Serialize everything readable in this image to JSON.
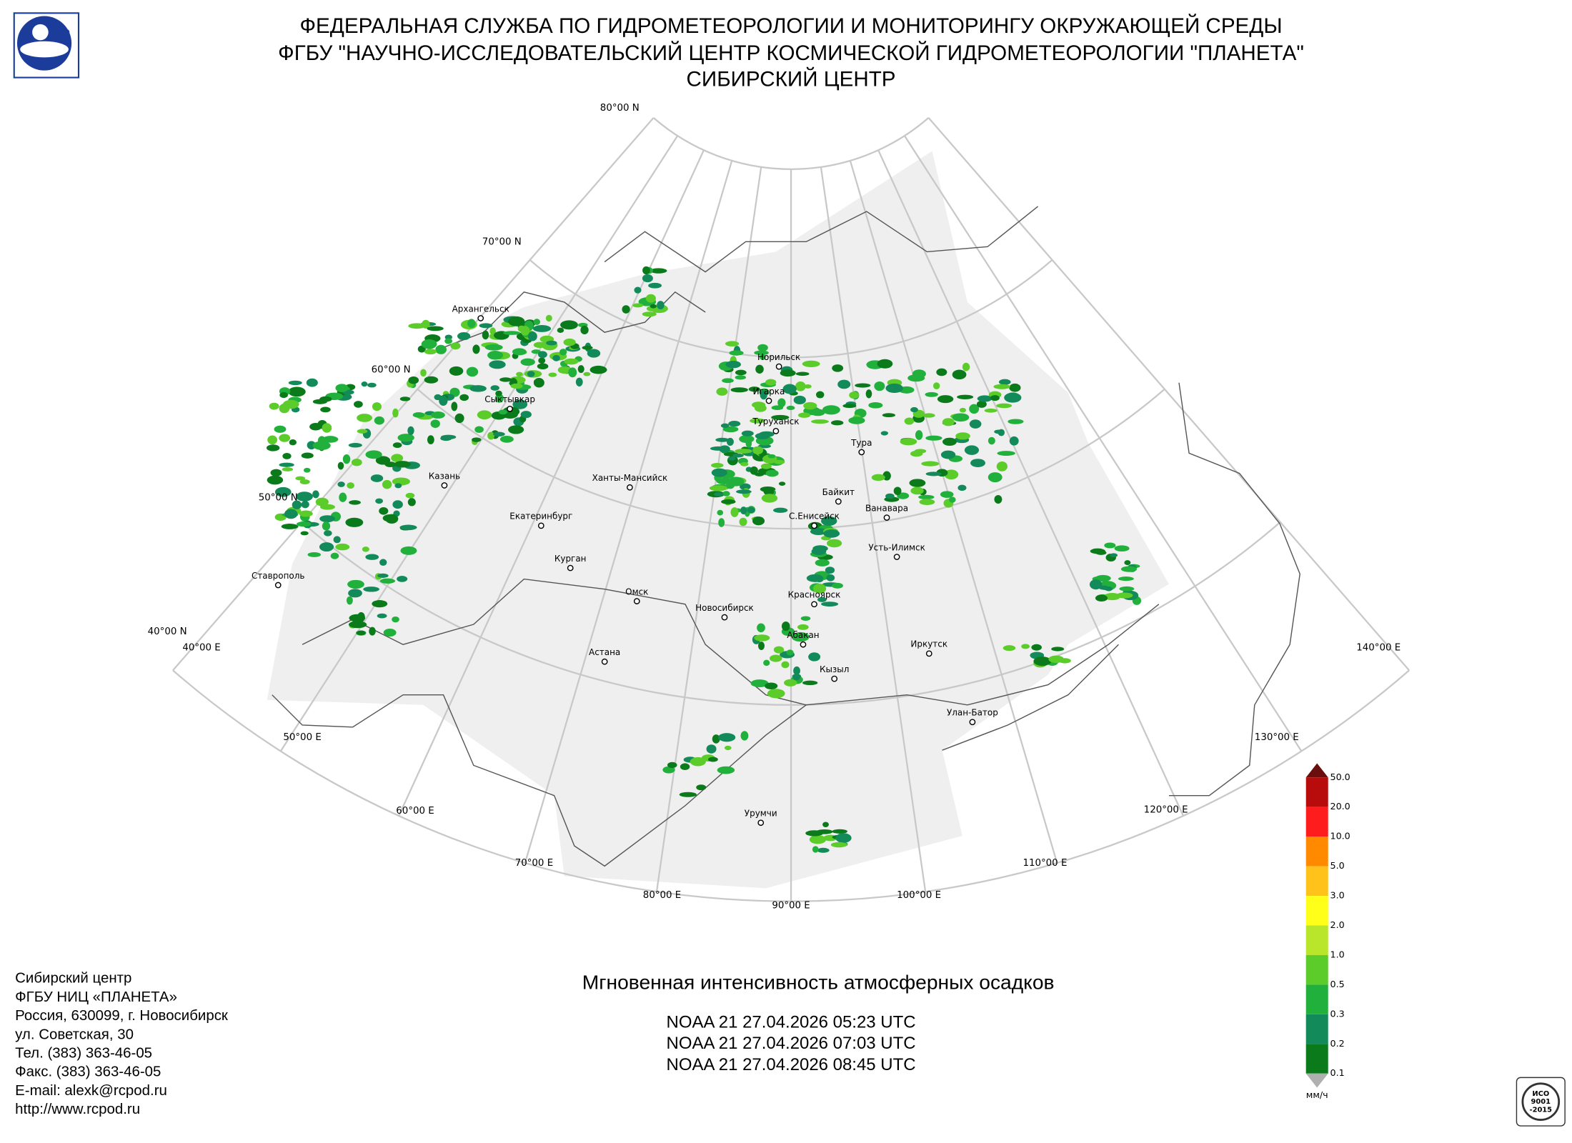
{
  "header": {
    "lines": [
      "ФЕДЕРАЛЬНАЯ СЛУЖБА ПО ГИДРОМЕТЕОРОЛОГИИ И МОНИТОРИНГУ ОКРУЖАЮЩЕЙ СРЕДЫ",
      "ФГБУ \"НАУЧНО-ИССЛЕДОВАТЕЛЬСКИЙ ЦЕНТР КОСМИЧЕСКОЙ ГИДРОМЕТЕОРОЛОГИИ \"ПЛАНЕТА\"",
      "СИБИРСКИЙ ЦЕНТР"
    ]
  },
  "map": {
    "parallel_labels": [
      "80°00 N",
      "70°00 N",
      "60°00 N",
      "50°00 N",
      "40°00 N"
    ],
    "meridian_labels": [
      "40°00 E",
      "50°00 E",
      "60°00 E",
      "70°00 E",
      "80°00 E",
      "90°00 E",
      "100°00 E",
      "110°00 E",
      "120°00 E",
      "130°00 E",
      "140°00 E"
    ],
    "cities": [
      "Архангельск",
      "Сыктывкар",
      "Казань",
      "Ставрополь",
      "Екатеринбург",
      "Ханты-Мансийск",
      "Курган",
      "Омск",
      "Астана",
      "Новосибирск",
      "Норильск",
      "Игарка",
      "Туруханск",
      "Тура",
      "Байкит",
      "С.Енисейск",
      "Ванавара",
      "Усть-Илимск",
      "Красноярск",
      "Абакан",
      "Кызыл",
      "Иркутск",
      "Улан-Батор",
      "Урумчи"
    ]
  },
  "legend": {
    "ticks": [
      {
        "value": 50,
        "label": "50.0"
      },
      {
        "value": 20,
        "label": "20.0"
      },
      {
        "value": 10,
        "label": "10.0"
      },
      {
        "value": 5,
        "label": "5.0"
      },
      {
        "value": 3,
        "label": "3.0"
      },
      {
        "value": 2,
        "label": "2.0"
      },
      {
        "value": 1,
        "label": "1.0"
      },
      {
        "value": 0.5,
        "label": "0.5"
      },
      {
        "value": 0.3,
        "label": "0.3"
      },
      {
        "value": 0.2,
        "label": "0.2"
      },
      {
        "value": 0.1,
        "label": "0.1"
      }
    ],
    "colors": [
      "#b80c0c",
      "#ff1c1c",
      "#ff8a00",
      "#ffc21a",
      "#ffff1a",
      "#b9e52a",
      "#5ccc2a",
      "#22b03c",
      "#138a5a",
      "#0a7a1a"
    ],
    "over_color": "#6b0e0e",
    "under_color": "#b0b0b0",
    "unit": "мм/ч"
  },
  "product": {
    "title": "Мгновенная интенсивность атмосферных осадков",
    "passes": [
      "NOAA 21 27.04.2026  05:23 UTC",
      "NOAA 21 27.04.2026  07:03 UTC",
      "NOAA 21 27.04.2026  08:45 UTC"
    ]
  },
  "contacts": {
    "lines": [
      "Сибирский центр",
      "ФГБУ НИЦ «ПЛАНЕТА»",
      "Россия, 630099, г. Новосибирск",
      "ул. Советская, 30",
      "Тел. (383) 363-46-05",
      "Факс. (383) 363-46-05",
      "E-mail: alexk@rcpod.ru",
      "http://www.rcpod.ru"
    ]
  },
  "badge": {
    "lines": [
      "ИСО",
      "9001",
      "-2015"
    ]
  }
}
